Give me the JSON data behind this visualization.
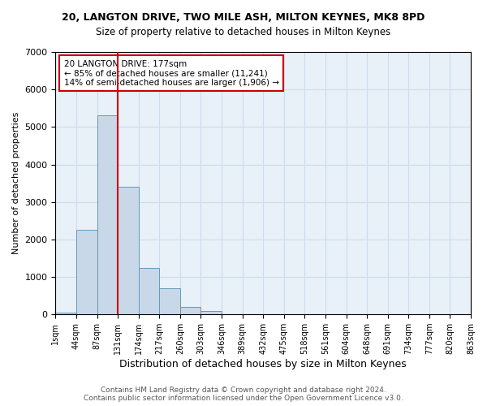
{
  "title_line1": "20, LANGTON DRIVE, TWO MILE ASH, MILTON KEYNES, MK8 8PD",
  "title_line2": "Size of property relative to detached houses in Milton Keynes",
  "xlabel": "Distribution of detached houses by size in Milton Keynes",
  "ylabel": "Number of detached properties",
  "bar_color": "#c8d8e8",
  "bar_edge_color": "#6699bb",
  "grid_color": "#ccddee",
  "background_color": "#e8f0f8",
  "vline_color": "#cc0000",
  "vline_x": 3,
  "annotation_text": "20 LANGTON DRIVE: 177sqm\n← 85% of detached houses are smaller (11,241)\n14% of semi-detached houses are larger (1,906) →",
  "annotation_box_color": "white",
  "annotation_box_edge": "#cc0000",
  "bar_values": [
    50,
    2250,
    5300,
    3400,
    1250,
    700,
    200,
    90,
    0,
    0,
    0,
    0,
    0,
    0,
    0,
    0,
    0,
    0,
    0,
    0
  ],
  "bin_labels": [
    "1sqm",
    "44sqm",
    "87sqm",
    "131sqm",
    "174sqm",
    "217sqm",
    "260sqm",
    "303sqm",
    "346sqm",
    "389sqm",
    "432sqm",
    "475sqm",
    "518sqm",
    "561sqm",
    "604sqm",
    "648sqm",
    "691sqm",
    "734sqm",
    "777sqm",
    "820sqm",
    "863sqm"
  ],
  "ylim": [
    0,
    7000
  ],
  "yticks": [
    0,
    1000,
    2000,
    3000,
    4000,
    5000,
    6000,
    7000
  ],
  "footer_line1": "Contains HM Land Registry data © Crown copyright and database right 2024.",
  "footer_line2": "Contains public sector information licensed under the Open Government Licence v3.0.",
  "figsize": [
    6.0,
    5.0
  ],
  "dpi": 100
}
